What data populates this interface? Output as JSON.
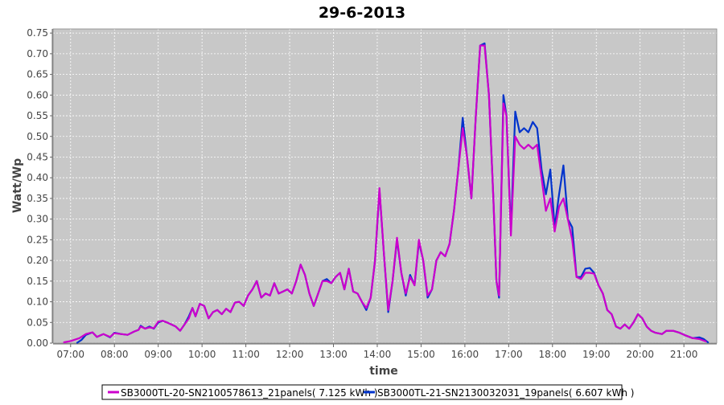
{
  "chart_data": {
    "type": "line",
    "title": "29-6-2013",
    "xlabel": "time",
    "ylabel": "Watt/Wp",
    "xlim": [
      6.6,
      21.75
    ],
    "ylim": [
      0,
      0.76
    ],
    "x_ticks": [
      "07:00",
      "08:00",
      "09:00",
      "10:00",
      "11:00",
      "12:00",
      "13:00",
      "14:00",
      "15:00",
      "16:00",
      "17:00",
      "18:00",
      "19:00",
      "20:00",
      "21:00"
    ],
    "x_tick_values": [
      7,
      8,
      9,
      10,
      11,
      12,
      13,
      14,
      15,
      16,
      17,
      18,
      19,
      20,
      21
    ],
    "y_ticks": [
      "0.00",
      "0.05",
      "0.10",
      "0.15",
      "0.20",
      "0.25",
      "0.30",
      "0.35",
      "0.40",
      "0.45",
      "0.50",
      "0.55",
      "0.60",
      "0.65",
      "0.70",
      "0.75"
    ],
    "y_tick_values": [
      0,
      0.05,
      0.1,
      0.15,
      0.2,
      0.25,
      0.3,
      0.35,
      0.4,
      0.45,
      0.5,
      0.55,
      0.6,
      0.65,
      0.7,
      0.75
    ],
    "grid": true,
    "legend_position": "bottom",
    "plot_background": "#c8c8c8",
    "series": [
      {
        "name": "SB3000TL-20-SN2100578613_21panels( 7.125 kWh )",
        "color": "#cc00cc",
        "points": [
          [
            6.85,
            0.002
          ],
          [
            7.0,
            0.005
          ],
          [
            7.2,
            0.012
          ],
          [
            7.35,
            0.022
          ],
          [
            7.5,
            0.026
          ],
          [
            7.6,
            0.015
          ],
          [
            7.75,
            0.022
          ],
          [
            7.9,
            0.015
          ],
          [
            8.0,
            0.024
          ],
          [
            8.15,
            0.022
          ],
          [
            8.3,
            0.02
          ],
          [
            8.45,
            0.028
          ],
          [
            8.55,
            0.032
          ],
          [
            8.6,
            0.04
          ],
          [
            8.7,
            0.035
          ],
          [
            8.8,
            0.038
          ],
          [
            8.9,
            0.036
          ],
          [
            9.0,
            0.052
          ],
          [
            9.1,
            0.054
          ],
          [
            9.2,
            0.05
          ],
          [
            9.3,
            0.045
          ],
          [
            9.4,
            0.04
          ],
          [
            9.5,
            0.03
          ],
          [
            9.6,
            0.045
          ],
          [
            9.7,
            0.06
          ],
          [
            9.78,
            0.085
          ],
          [
            9.85,
            0.065
          ],
          [
            9.95,
            0.095
          ],
          [
            10.05,
            0.09
          ],
          [
            10.15,
            0.06
          ],
          [
            10.25,
            0.075
          ],
          [
            10.35,
            0.08
          ],
          [
            10.45,
            0.07
          ],
          [
            10.55,
            0.083
          ],
          [
            10.65,
            0.075
          ],
          [
            10.75,
            0.098
          ],
          [
            10.85,
            0.1
          ],
          [
            10.95,
            0.09
          ],
          [
            11.05,
            0.115
          ],
          [
            11.15,
            0.13
          ],
          [
            11.25,
            0.15
          ],
          [
            11.35,
            0.11
          ],
          [
            11.45,
            0.12
          ],
          [
            11.55,
            0.115
          ],
          [
            11.65,
            0.145
          ],
          [
            11.75,
            0.12
          ],
          [
            11.85,
            0.125
          ],
          [
            11.95,
            0.13
          ],
          [
            12.05,
            0.12
          ],
          [
            12.15,
            0.15
          ],
          [
            12.25,
            0.19
          ],
          [
            12.35,
            0.165
          ],
          [
            12.45,
            0.12
          ],
          [
            12.55,
            0.09
          ],
          [
            12.65,
            0.12
          ],
          [
            12.75,
            0.15
          ],
          [
            12.85,
            0.15
          ],
          [
            12.95,
            0.145
          ],
          [
            13.05,
            0.16
          ],
          [
            13.15,
            0.17
          ],
          [
            13.25,
            0.13
          ],
          [
            13.35,
            0.18
          ],
          [
            13.45,
            0.125
          ],
          [
            13.55,
            0.12
          ],
          [
            13.65,
            0.1
          ],
          [
            13.75,
            0.085
          ],
          [
            13.85,
            0.11
          ],
          [
            13.95,
            0.2
          ],
          [
            14.05,
            0.375
          ],
          [
            14.15,
            0.22
          ],
          [
            14.25,
            0.08
          ],
          [
            14.35,
            0.15
          ],
          [
            14.45,
            0.255
          ],
          [
            14.55,
            0.17
          ],
          [
            14.65,
            0.12
          ],
          [
            14.75,
            0.16
          ],
          [
            14.85,
            0.14
          ],
          [
            14.95,
            0.25
          ],
          [
            15.05,
            0.2
          ],
          [
            15.15,
            0.115
          ],
          [
            15.25,
            0.13
          ],
          [
            15.35,
            0.2
          ],
          [
            15.45,
            0.22
          ],
          [
            15.55,
            0.21
          ],
          [
            15.65,
            0.24
          ],
          [
            15.75,
            0.32
          ],
          [
            15.85,
            0.42
          ],
          [
            15.95,
            0.52
          ],
          [
            16.05,
            0.45
          ],
          [
            16.15,
            0.35
          ],
          [
            16.25,
            0.55
          ],
          [
            16.35,
            0.72
          ],
          [
            16.45,
            0.72
          ],
          [
            16.55,
            0.6
          ],
          [
            16.65,
            0.35
          ],
          [
            16.72,
            0.15
          ],
          [
            16.78,
            0.115
          ],
          [
            16.88,
            0.58
          ],
          [
            16.95,
            0.55
          ],
          [
            17.05,
            0.26
          ],
          [
            17.15,
            0.5
          ],
          [
            17.25,
            0.48
          ],
          [
            17.35,
            0.47
          ],
          [
            17.45,
            0.48
          ],
          [
            17.55,
            0.47
          ],
          [
            17.65,
            0.48
          ],
          [
            17.75,
            0.4
          ],
          [
            17.85,
            0.32
          ],
          [
            17.95,
            0.35
          ],
          [
            18.05,
            0.27
          ],
          [
            18.15,
            0.33
          ],
          [
            18.25,
            0.35
          ],
          [
            18.35,
            0.3
          ],
          [
            18.45,
            0.25
          ],
          [
            18.55,
            0.16
          ],
          [
            18.65,
            0.155
          ],
          [
            18.75,
            0.17
          ],
          [
            18.85,
            0.17
          ],
          [
            18.95,
            0.168
          ],
          [
            19.05,
            0.14
          ],
          [
            19.15,
            0.12
          ],
          [
            19.25,
            0.08
          ],
          [
            19.35,
            0.07
          ],
          [
            19.45,
            0.04
          ],
          [
            19.55,
            0.035
          ],
          [
            19.65,
            0.045
          ],
          [
            19.75,
            0.035
          ],
          [
            19.85,
            0.05
          ],
          [
            19.95,
            0.07
          ],
          [
            20.05,
            0.06
          ],
          [
            20.15,
            0.04
          ],
          [
            20.25,
            0.03
          ],
          [
            20.35,
            0.025
          ],
          [
            20.5,
            0.022
          ],
          [
            20.6,
            0.03
          ],
          [
            20.75,
            0.03
          ],
          [
            20.9,
            0.025
          ],
          [
            21.05,
            0.018
          ],
          [
            21.2,
            0.012
          ],
          [
            21.35,
            0.01
          ],
          [
            21.5,
            0.004
          ]
        ]
      },
      {
        "name": "SB3000TL-21-SN2130032031_19panels( 6.607 kWh )",
        "color": "#0033cc",
        "points": [
          [
            7.15,
            0.001
          ],
          [
            7.25,
            0.008
          ],
          [
            7.35,
            0.02
          ],
          [
            7.5,
            0.026
          ],
          [
            7.6,
            0.015
          ],
          [
            7.75,
            0.022
          ],
          [
            7.9,
            0.014
          ],
          [
            8.0,
            0.025
          ],
          [
            8.15,
            0.022
          ],
          [
            8.3,
            0.02
          ],
          [
            8.45,
            0.028
          ],
          [
            8.55,
            0.032
          ],
          [
            8.6,
            0.042
          ],
          [
            8.7,
            0.035
          ],
          [
            8.8,
            0.04
          ],
          [
            8.9,
            0.035
          ],
          [
            9.0,
            0.05
          ],
          [
            9.1,
            0.054
          ],
          [
            9.2,
            0.05
          ],
          [
            9.3,
            0.045
          ],
          [
            9.4,
            0.04
          ],
          [
            9.5,
            0.03
          ],
          [
            9.6,
            0.045
          ],
          [
            9.7,
            0.065
          ],
          [
            9.78,
            0.085
          ],
          [
            9.85,
            0.065
          ],
          [
            9.95,
            0.095
          ],
          [
            10.05,
            0.09
          ],
          [
            10.15,
            0.06
          ],
          [
            10.25,
            0.075
          ],
          [
            10.35,
            0.08
          ],
          [
            10.45,
            0.07
          ],
          [
            10.55,
            0.083
          ],
          [
            10.65,
            0.075
          ],
          [
            10.75,
            0.098
          ],
          [
            10.85,
            0.1
          ],
          [
            10.95,
            0.09
          ],
          [
            11.05,
            0.115
          ],
          [
            11.15,
            0.13
          ],
          [
            11.25,
            0.15
          ],
          [
            11.35,
            0.11
          ],
          [
            11.45,
            0.12
          ],
          [
            11.55,
            0.115
          ],
          [
            11.65,
            0.145
          ],
          [
            11.75,
            0.12
          ],
          [
            11.85,
            0.125
          ],
          [
            11.95,
            0.13
          ],
          [
            12.05,
            0.12
          ],
          [
            12.15,
            0.15
          ],
          [
            12.25,
            0.19
          ],
          [
            12.35,
            0.165
          ],
          [
            12.45,
            0.12
          ],
          [
            12.55,
            0.09
          ],
          [
            12.65,
            0.12
          ],
          [
            12.75,
            0.15
          ],
          [
            12.85,
            0.155
          ],
          [
            12.95,
            0.145
          ],
          [
            13.05,
            0.16
          ],
          [
            13.15,
            0.17
          ],
          [
            13.25,
            0.13
          ],
          [
            13.35,
            0.18
          ],
          [
            13.45,
            0.125
          ],
          [
            13.55,
            0.12
          ],
          [
            13.65,
            0.1
          ],
          [
            13.75,
            0.08
          ],
          [
            13.85,
            0.11
          ],
          [
            13.95,
            0.2
          ],
          [
            14.05,
            0.37
          ],
          [
            14.15,
            0.22
          ],
          [
            14.25,
            0.075
          ],
          [
            14.35,
            0.15
          ],
          [
            14.45,
            0.25
          ],
          [
            14.55,
            0.17
          ],
          [
            14.65,
            0.115
          ],
          [
            14.75,
            0.165
          ],
          [
            14.85,
            0.14
          ],
          [
            14.95,
            0.245
          ],
          [
            15.05,
            0.2
          ],
          [
            15.15,
            0.11
          ],
          [
            15.25,
            0.13
          ],
          [
            15.35,
            0.2
          ],
          [
            15.45,
            0.22
          ],
          [
            15.55,
            0.21
          ],
          [
            15.65,
            0.24
          ],
          [
            15.75,
            0.32
          ],
          [
            15.85,
            0.42
          ],
          [
            15.95,
            0.545
          ],
          [
            16.05,
            0.45
          ],
          [
            16.15,
            0.35
          ],
          [
            16.25,
            0.55
          ],
          [
            16.35,
            0.72
          ],
          [
            16.45,
            0.725
          ],
          [
            16.55,
            0.6
          ],
          [
            16.65,
            0.35
          ],
          [
            16.72,
            0.15
          ],
          [
            16.78,
            0.11
          ],
          [
            16.88,
            0.6
          ],
          [
            16.95,
            0.55
          ],
          [
            17.05,
            0.27
          ],
          [
            17.15,
            0.56
          ],
          [
            17.25,
            0.51
          ],
          [
            17.35,
            0.52
          ],
          [
            17.45,
            0.51
          ],
          [
            17.55,
            0.535
          ],
          [
            17.65,
            0.52
          ],
          [
            17.75,
            0.42
          ],
          [
            17.85,
            0.36
          ],
          [
            17.95,
            0.42
          ],
          [
            18.05,
            0.28
          ],
          [
            18.15,
            0.36
          ],
          [
            18.25,
            0.43
          ],
          [
            18.35,
            0.3
          ],
          [
            18.45,
            0.28
          ],
          [
            18.55,
            0.16
          ],
          [
            18.65,
            0.16
          ],
          [
            18.75,
            0.18
          ],
          [
            18.85,
            0.182
          ],
          [
            18.95,
            0.17
          ],
          [
            19.05,
            0.14
          ],
          [
            19.15,
            0.12
          ],
          [
            19.25,
            0.08
          ],
          [
            19.35,
            0.07
          ],
          [
            19.45,
            0.04
          ],
          [
            19.55,
            0.035
          ],
          [
            19.65,
            0.045
          ],
          [
            19.75,
            0.035
          ],
          [
            19.85,
            0.05
          ],
          [
            19.95,
            0.07
          ],
          [
            20.05,
            0.06
          ],
          [
            20.15,
            0.04
          ],
          [
            20.25,
            0.03
          ],
          [
            20.35,
            0.025
          ],
          [
            20.5,
            0.022
          ],
          [
            20.6,
            0.03
          ],
          [
            20.75,
            0.03
          ],
          [
            20.9,
            0.025
          ],
          [
            21.05,
            0.018
          ],
          [
            21.2,
            0.012
          ],
          [
            21.35,
            0.014
          ],
          [
            21.45,
            0.01
          ],
          [
            21.55,
            0.002
          ]
        ]
      }
    ]
  }
}
